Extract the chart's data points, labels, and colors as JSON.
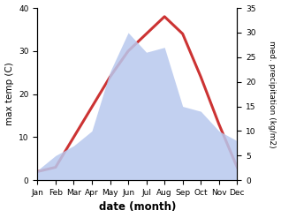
{
  "months": [
    "Jan",
    "Feb",
    "Mar",
    "Apr",
    "May",
    "Jun",
    "Jul",
    "Aug",
    "Sep",
    "Oct",
    "Nov",
    "Dec"
  ],
  "month_indices": [
    1,
    2,
    3,
    4,
    5,
    6,
    7,
    8,
    9,
    10,
    11,
    12
  ],
  "max_temp": [
    2,
    3,
    10,
    17,
    24,
    30,
    34,
    38,
    34,
    24,
    13,
    3
  ],
  "precipitation": [
    2,
    5,
    7,
    10,
    22,
    30,
    26,
    27,
    15,
    14,
    10,
    8
  ],
  "temp_color": "#cc3333",
  "precip_fill_color": "#b8c8ee",
  "precip_fill_alpha": 0.85,
  "xlabel": "date (month)",
  "ylabel_left": "max temp (C)",
  "ylabel_right": "med. precipitation (kg/m2)",
  "ylim_left": [
    0,
    40
  ],
  "ylim_right": [
    0,
    35
  ],
  "yticks_left": [
    0,
    10,
    20,
    30,
    40
  ],
  "yticks_right": [
    0,
    5,
    10,
    15,
    20,
    25,
    30,
    35
  ],
  "background_color": "#ffffff",
  "line_width": 2.2
}
